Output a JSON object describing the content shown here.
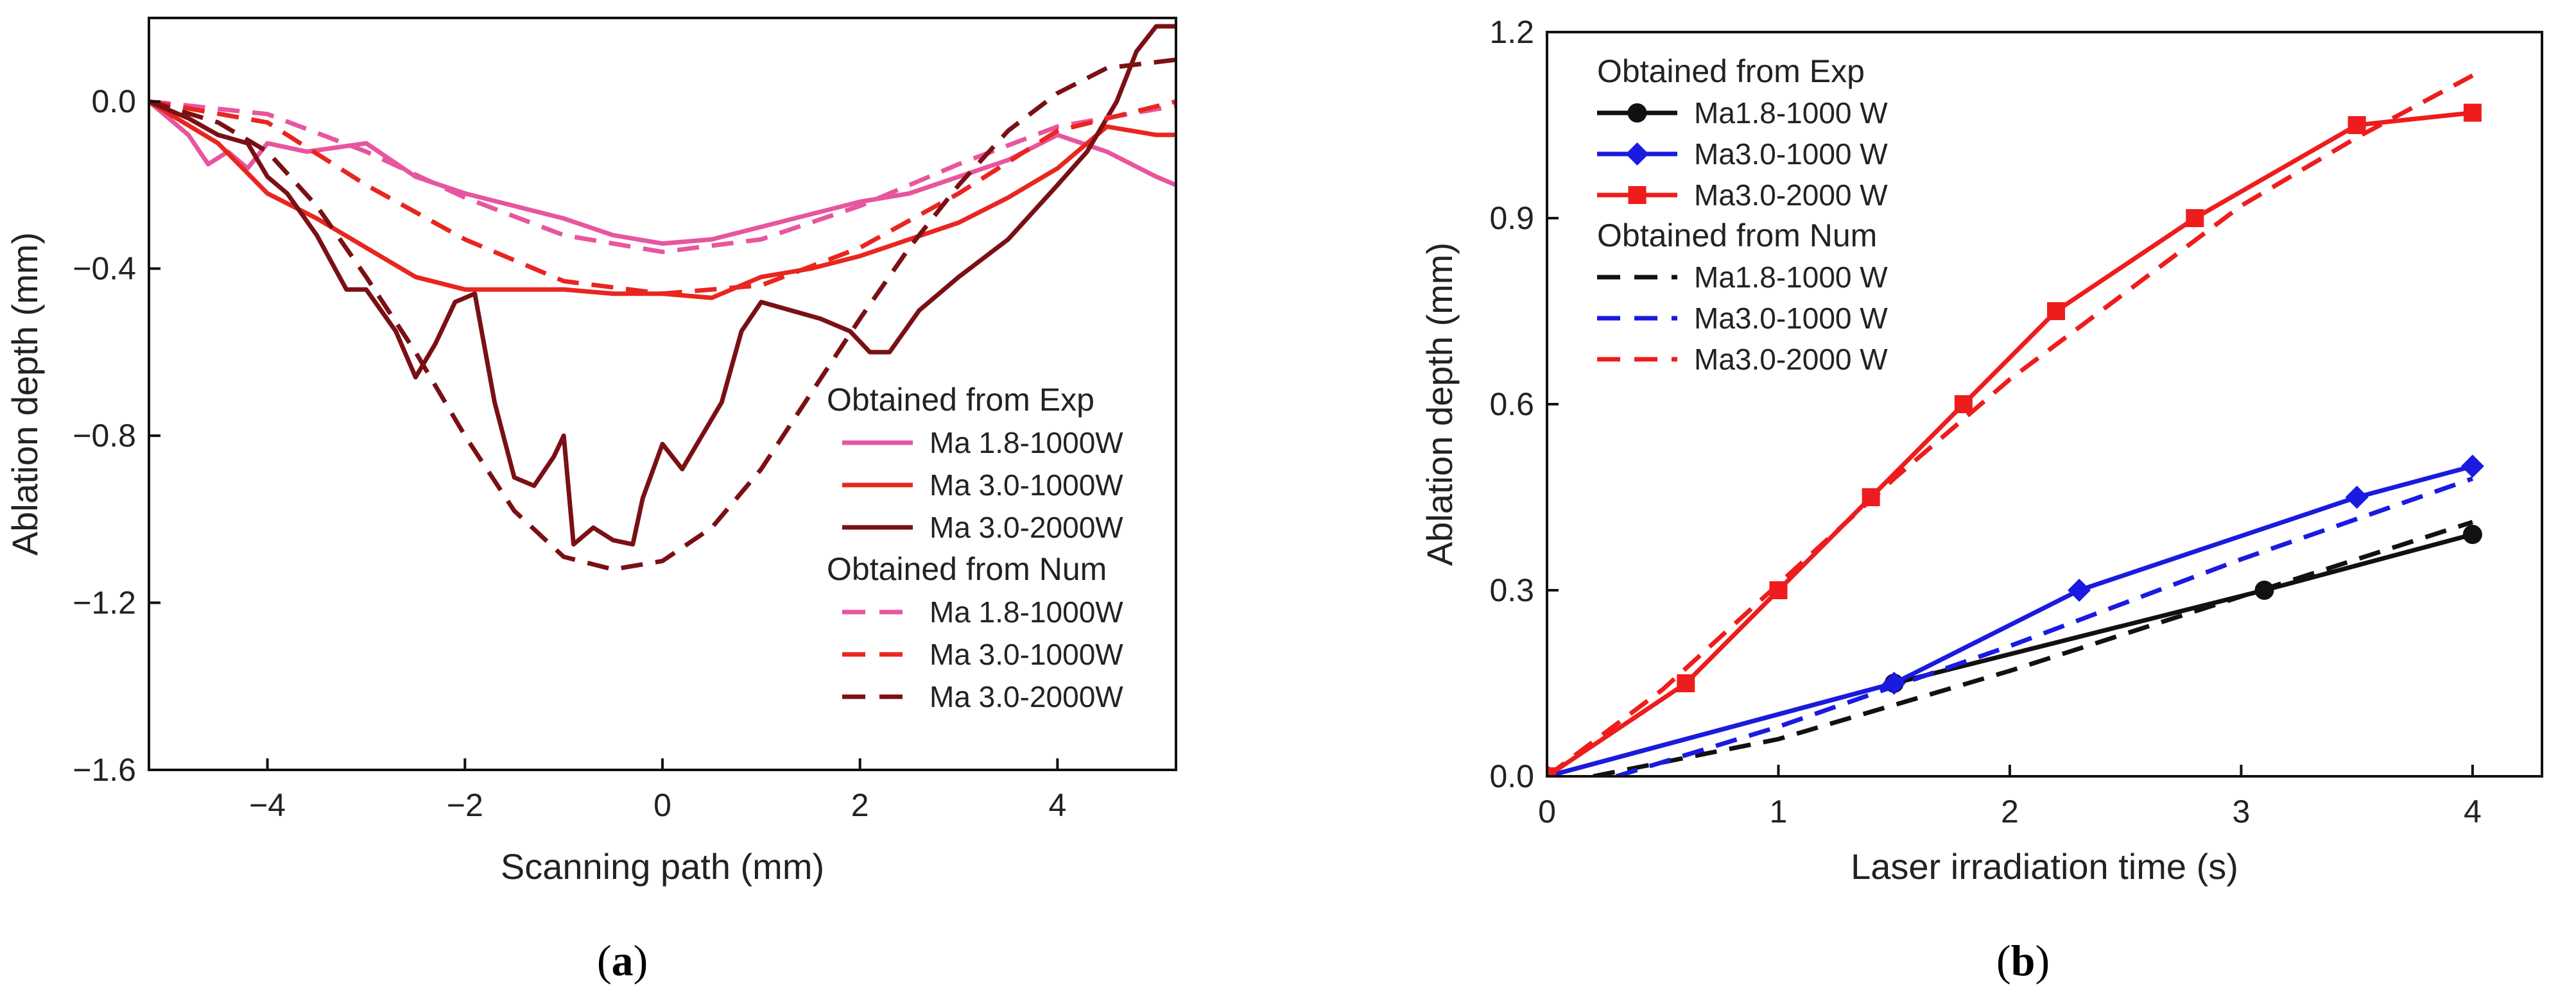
{
  "chart_data": [
    {
      "panel": "(a)",
      "panel_open": "(",
      "panel_letter": "a",
      "panel_close": ")",
      "type": "line",
      "title": "",
      "xlabel": "Scanning path (mm)",
      "ylabel": "Ablation depth (mm)",
      "xlim": [
        -5.2,
        5.2
      ],
      "ylim": [
        -1.6,
        0.2
      ],
      "xticks": [
        -4,
        -2,
        0,
        2,
        4
      ],
      "xtick_labels": [
        "−4",
        "−2",
        "0",
        "2",
        "4"
      ],
      "yticks": [
        0.0,
        -0.4,
        -0.8,
        -1.2,
        -1.6
      ],
      "ytick_labels": [
        "0.0",
        "−0.4",
        "−0.8",
        "−1.2",
        "−1.6"
      ],
      "legend": {
        "placement": "lower-right",
        "groups": [
          {
            "heading": "Obtained from Exp",
            "entries": [
              "Ma 1.8-1000W",
              "Ma 3.0-1000W",
              "Ma 3.0-2000W"
            ]
          },
          {
            "heading": "Obtained from Num",
            "entries": [
              "Ma 1.8-1000W",
              "Ma 3.0-1000W",
              "Ma 3.0-2000W"
            ]
          }
        ]
      },
      "series": [
        {
          "name": "Ma 1.8-1000W",
          "group": "Exp",
          "color": "#e8559f",
          "dash": "solid",
          "x": [
            -5.2,
            -4.8,
            -4.6,
            -4.4,
            -4.2,
            -4.0,
            -3.6,
            -3.0,
            -2.5,
            -2.0,
            -1.5,
            -1.0,
            -0.5,
            0.0,
            0.5,
            1.0,
            1.5,
            2.0,
            2.5,
            3.0,
            3.5,
            4.0,
            4.5,
            5.0,
            5.2
          ],
          "y": [
            0.0,
            -0.08,
            -0.15,
            -0.12,
            -0.16,
            -0.1,
            -0.12,
            -0.1,
            -0.18,
            -0.22,
            -0.25,
            -0.28,
            -0.32,
            -0.34,
            -0.33,
            -0.3,
            -0.27,
            -0.24,
            -0.22,
            -0.18,
            -0.14,
            -0.08,
            -0.12,
            -0.18,
            -0.2
          ]
        },
        {
          "name": "Ma 3.0-1000W",
          "group": "Exp",
          "color": "#e8261f",
          "dash": "solid",
          "x": [
            -5.2,
            -4.5,
            -4.0,
            -3.5,
            -3.0,
            -2.5,
            -2.0,
            -1.5,
            -1.0,
            -0.5,
            0.0,
            0.5,
            1.0,
            1.5,
            2.0,
            2.5,
            3.0,
            3.5,
            4.0,
            4.5,
            5.0,
            5.2
          ],
          "y": [
            0.0,
            -0.1,
            -0.22,
            -0.28,
            -0.35,
            -0.42,
            -0.45,
            -0.45,
            -0.45,
            -0.46,
            -0.46,
            -0.47,
            -0.42,
            -0.4,
            -0.37,
            -0.33,
            -0.29,
            -0.23,
            -0.16,
            -0.06,
            -0.08,
            -0.08
          ]
        },
        {
          "name": "Ma 3.0-2000W",
          "group": "Exp",
          "color": "#7a1014",
          "dash": "solid",
          "x": [
            -5.2,
            -4.8,
            -4.5,
            -4.2,
            -4.0,
            -3.8,
            -3.5,
            -3.2,
            -3.0,
            -2.7,
            -2.5,
            -2.3,
            -2.1,
            -1.9,
            -1.7,
            -1.5,
            -1.3,
            -1.1,
            -1.0,
            -0.9,
            -0.7,
            -0.5,
            -0.3,
            -0.2,
            0.0,
            0.2,
            0.4,
            0.6,
            0.8,
            1.0,
            1.3,
            1.6,
            1.9,
            2.1,
            2.3,
            2.6,
            3.0,
            3.5,
            4.0,
            4.3,
            4.6,
            4.8,
            5.0,
            5.2
          ],
          "y": [
            0.0,
            -0.04,
            -0.08,
            -0.1,
            -0.18,
            -0.22,
            -0.32,
            -0.45,
            -0.45,
            -0.55,
            -0.66,
            -0.58,
            -0.48,
            -0.46,
            -0.72,
            -0.9,
            -0.92,
            -0.85,
            -0.8,
            -1.06,
            -1.02,
            -1.05,
            -1.06,
            -0.95,
            -0.82,
            -0.88,
            -0.8,
            -0.72,
            -0.55,
            -0.48,
            -0.5,
            -0.52,
            -0.55,
            -0.6,
            -0.6,
            -0.5,
            -0.42,
            -0.33,
            -0.2,
            -0.12,
            0.0,
            0.12,
            0.18,
            0.18
          ]
        },
        {
          "name": "Ma 1.8-1000W",
          "group": "Num",
          "color": "#e8559f",
          "dash": "dashed",
          "x": [
            -5.2,
            -4.0,
            -3.0,
            -2.0,
            -1.0,
            0.0,
            1.0,
            2.0,
            3.0,
            4.0,
            5.2
          ],
          "y": [
            0.0,
            -0.03,
            -0.12,
            -0.23,
            -0.32,
            -0.36,
            -0.33,
            -0.25,
            -0.15,
            -0.06,
            -0.01
          ]
        },
        {
          "name": "Ma 3.0-1000W",
          "group": "Num",
          "color": "#e8261f",
          "dash": "dashed",
          "x": [
            -5.2,
            -4.0,
            -3.0,
            -2.0,
            -1.0,
            0.0,
            1.0,
            2.0,
            3.0,
            4.0,
            5.2
          ],
          "y": [
            0.0,
            -0.05,
            -0.2,
            -0.33,
            -0.43,
            -0.46,
            -0.44,
            -0.35,
            -0.22,
            -0.07,
            0.0
          ]
        },
        {
          "name": "Ma 3.0-2000W",
          "group": "Num",
          "color": "#7a1014",
          "dash": "dashed",
          "x": [
            -5.2,
            -4.5,
            -4.0,
            -3.5,
            -3.0,
            -2.5,
            -2.0,
            -1.5,
            -1.0,
            -0.5,
            0.0,
            0.5,
            1.0,
            1.5,
            2.0,
            2.5,
            3.0,
            3.5,
            4.0,
            4.5,
            5.2
          ],
          "y": [
            0.0,
            -0.05,
            -0.12,
            -0.25,
            -0.42,
            -0.6,
            -0.8,
            -0.98,
            -1.09,
            -1.12,
            -1.1,
            -1.02,
            -0.88,
            -0.7,
            -0.52,
            -0.35,
            -0.2,
            -0.07,
            0.02,
            0.08,
            0.1
          ]
        }
      ]
    },
    {
      "panel": "(b)",
      "panel_open": "(",
      "panel_letter": "b",
      "panel_close": ")",
      "type": "line",
      "title": "",
      "xlabel": "Laser irradiation time (s)",
      "ylabel": "Ablation depth (mm)",
      "xlim": [
        0,
        4.3
      ],
      "ylim": [
        0,
        1.2
      ],
      "xticks": [
        0,
        1,
        2,
        3,
        4
      ],
      "xtick_labels": [
        "0",
        "1",
        "2",
        "3",
        "4"
      ],
      "yticks": [
        0.0,
        0.3,
        0.6,
        0.9,
        1.2
      ],
      "ytick_labels": [
        "0.0",
        "0.3",
        "0.6",
        "0.9",
        "1.2"
      ],
      "legend": {
        "placement": "top-left",
        "groups": [
          {
            "heading": "Obtained from Exp",
            "entries": [
              "Ma1.8-1000 W",
              "Ma3.0-1000 W",
              "Ma3.0-2000 W"
            ]
          },
          {
            "heading": "Obtained from Num",
            "entries": [
              "Ma1.8-1000 W",
              "Ma3.0-1000 W",
              "Ma3.0-2000 W"
            ]
          }
        ]
      },
      "series": [
        {
          "name": "Ma1.8-1000 W",
          "group": "Exp",
          "color": "#111111",
          "dash": "solid",
          "marker": "circle",
          "x": [
            0,
            1.5,
            3.1,
            4.0
          ],
          "y": [
            0.0,
            0.15,
            0.3,
            0.39
          ]
        },
        {
          "name": "Ma3.0-1000 W",
          "group": "Exp",
          "color": "#1a1ae0",
          "dash": "solid",
          "marker": "diamond",
          "x": [
            0,
            1.5,
            2.3,
            3.5,
            4.0
          ],
          "y": [
            0.0,
            0.15,
            0.3,
            0.45,
            0.5
          ]
        },
        {
          "name": "Ma3.0-2000 W",
          "group": "Exp",
          "color": "#ee1c1c",
          "dash": "solid",
          "marker": "square",
          "x": [
            0,
            0.6,
            1.0,
            1.4,
            1.8,
            2.2,
            2.8,
            3.5,
            4.0
          ],
          "y": [
            0.0,
            0.15,
            0.3,
            0.45,
            0.6,
            0.75,
            0.9,
            1.05,
            1.07
          ]
        },
        {
          "name": "Ma1.8-1000 W",
          "group": "Num",
          "color": "#111111",
          "dash": "dashed",
          "marker": "none",
          "x": [
            0.2,
            1.0,
            2.0,
            3.0,
            4.0
          ],
          "y": [
            0.0,
            0.06,
            0.17,
            0.29,
            0.41
          ]
        },
        {
          "name": "Ma3.0-1000 W",
          "group": "Num",
          "color": "#1a1ae0",
          "dash": "dashed",
          "marker": "none",
          "x": [
            0.3,
            1.0,
            2.0,
            3.0,
            4.0
          ],
          "y": [
            0.0,
            0.08,
            0.21,
            0.35,
            0.48
          ]
        },
        {
          "name": "Ma3.0-2000 W",
          "group": "Num",
          "color": "#ee1c1c",
          "dash": "dashed",
          "marker": "none",
          "x": [
            0.0,
            0.5,
            1.0,
            1.5,
            2.0,
            2.5,
            3.0,
            3.5,
            4.0
          ],
          "y": [
            0.0,
            0.14,
            0.31,
            0.48,
            0.64,
            0.78,
            0.92,
            1.03,
            1.13
          ]
        }
      ]
    }
  ]
}
